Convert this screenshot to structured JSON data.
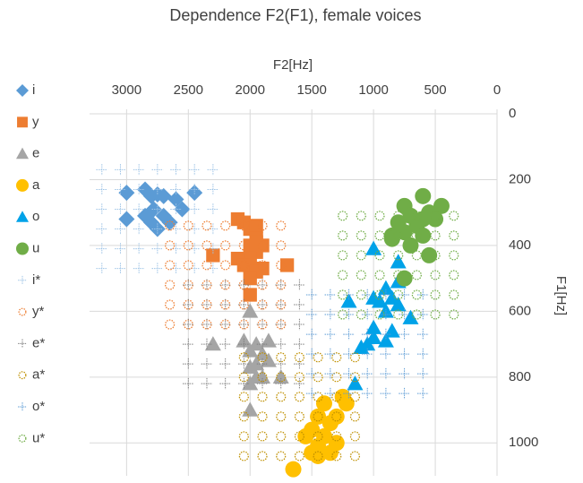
{
  "chart_data": {
    "type": "scatter",
    "title": "Dependence F2(F1), female voices",
    "x_label": "F2[Hz]",
    "y_label": "F1[Hz]",
    "xlim": [
      3300,
      0
    ],
    "ylim": [
      0,
      1100
    ],
    "xticks": [
      3000,
      2500,
      2000,
      1500,
      1000,
      500,
      0
    ],
    "yticks": [
      0,
      200,
      400,
      600,
      800,
      1000
    ],
    "grid": true,
    "series": [
      {
        "name": "i",
        "color": "#5b9bd5",
        "marker": "diamond",
        "x": [
          3000,
          2850,
          2800,
          2750,
          2700,
          2600,
          2450,
          2780,
          2700,
          2550,
          2800,
          2650,
          3000,
          2750,
          2850
        ],
        "y": [
          240,
          230,
          250,
          245,
          250,
          260,
          240,
          290,
          310,
          290,
          330,
          330,
          320,
          350,
          310
        ]
      },
      {
        "name": "y",
        "color": "#ed7d31",
        "marker": "square",
        "x": [
          2100,
          2050,
          2000,
          1950,
          1950,
          2000,
          1900,
          1950,
          2000,
          2100,
          2300,
          2050,
          1700,
          1900,
          1950,
          2000,
          2000,
          1950
        ],
        "y": [
          320,
          330,
          350,
          340,
          380,
          400,
          400,
          420,
          440,
          440,
          430,
          460,
          460,
          470,
          480,
          500,
          550,
          390
        ]
      },
      {
        "name": "e",
        "color": "#a5a5a5",
        "marker": "triangle",
        "x": [
          2000,
          2300,
          2050,
          2000,
          1950,
          1850,
          1900,
          1850,
          1750,
          2000,
          1950,
          1900,
          2000,
          1950,
          2000
        ],
        "y": [
          600,
          700,
          690,
          720,
          700,
          690,
          730,
          750,
          800,
          770,
          800,
          800,
          820,
          760,
          900
        ]
      },
      {
        "name": "a",
        "color": "#ffc000",
        "marker": "circle",
        "x": [
          1400,
          1250,
          1220,
          1300,
          1450,
          1350,
          1500,
          1400,
          1550,
          1300,
          1450,
          1500,
          1350,
          1450,
          1650
        ],
        "y": [
          880,
          860,
          880,
          920,
          920,
          940,
          960,
          980,
          980,
          1000,
          1010,
          1030,
          1030,
          1040,
          1080
        ]
      },
      {
        "name": "o",
        "color": "#00a2e8",
        "marker": "triangle",
        "x": [
          1000,
          800,
          800,
          900,
          850,
          950,
          1000,
          1200,
          900,
          700,
          1000,
          850,
          1000,
          900,
          1100,
          1050,
          1150,
          800
        ],
        "y": [
          410,
          450,
          510,
          530,
          560,
          570,
          560,
          570,
          600,
          620,
          650,
          660,
          680,
          690,
          710,
          700,
          820,
          580
        ]
      },
      {
        "name": "u",
        "color": "#70ad47",
        "marker": "circle",
        "x": [
          600,
          750,
          450,
          550,
          700,
          600,
          500,
          800,
          650,
          750,
          600,
          850,
          700,
          850,
          550,
          750
        ],
        "y": [
          250,
          280,
          280,
          300,
          310,
          320,
          320,
          330,
          340,
          360,
          370,
          370,
          400,
          380,
          430,
          500
        ]
      },
      {
        "name": "i*",
        "color": "#9dc3e6",
        "marker": "plus",
        "x": [
          3200,
          3050,
          2900,
          2750,
          2600,
          2450,
          2300,
          3200,
          3050,
          2900,
          2750,
          2600,
          2450,
          2300,
          3200,
          3050,
          2900,
          2750,
          2600,
          2450,
          2300,
          3200,
          3050,
          2900,
          2750,
          2600,
          2450,
          2300,
          3200,
          3050,
          2900,
          2750,
          2600,
          2450,
          2300,
          3200,
          3050,
          2900,
          2750,
          2600,
          2450,
          2300
        ],
        "y": [
          170,
          170,
          170,
          170,
          170,
          170,
          170,
          230,
          230,
          230,
          230,
          230,
          230,
          230,
          290,
          290,
          290,
          290,
          290,
          290,
          290,
          350,
          350,
          350,
          350,
          350,
          350,
          350,
          410,
          410,
          410,
          410,
          410,
          410,
          410,
          470,
          470,
          470,
          470,
          470,
          470,
          470
        ]
      },
      {
        "name": "y*",
        "color": "#ed7d31",
        "marker": "ring",
        "x": [
          2650,
          2500,
          2350,
          2200,
          2050,
          1900,
          1750,
          2650,
          2500,
          2350,
          2200,
          2050,
          1900,
          1750,
          2650,
          2500,
          2350,
          2200,
          2050,
          1900,
          1750,
          2650,
          2500,
          2350,
          2200,
          2050,
          1900,
          1750,
          2650,
          2500,
          2350,
          2200,
          2050,
          1900,
          1750,
          2650,
          2500,
          2350,
          2200,
          2050,
          1900,
          1750
        ],
        "y": [
          340,
          340,
          340,
          340,
          340,
          340,
          340,
          400,
          400,
          400,
          400,
          400,
          400,
          400,
          460,
          460,
          460,
          460,
          460,
          460,
          460,
          520,
          520,
          520,
          520,
          520,
          520,
          520,
          580,
          580,
          580,
          580,
          580,
          580,
          580,
          640,
          640,
          640,
          640,
          640,
          640,
          640
        ]
      },
      {
        "name": "e*",
        "color": "#7f7f7f",
        "marker": "plus",
        "x": [
          2500,
          2350,
          2200,
          2050,
          1900,
          1750,
          1600,
          2500,
          2350,
          2200,
          2050,
          1900,
          1750,
          1600,
          2500,
          2350,
          2200,
          2050,
          1900,
          1750,
          1600,
          2500,
          2350,
          2200,
          2050,
          1900,
          1750,
          1600,
          2500,
          2350,
          2200,
          2050,
          1900,
          1750,
          1600,
          2500,
          2350,
          2200,
          2050,
          1900,
          1750,
          1600
        ],
        "y": [
          520,
          520,
          520,
          520,
          520,
          520,
          520,
          580,
          580,
          580,
          580,
          580,
          580,
          580,
          640,
          640,
          640,
          640,
          640,
          640,
          640,
          700,
          700,
          700,
          700,
          700,
          700,
          700,
          760,
          760,
          760,
          760,
          760,
          760,
          760,
          820,
          820,
          820,
          820,
          820,
          820,
          820
        ]
      },
      {
        "name": "a*",
        "color": "#bf9000",
        "marker": "ring",
        "x": [
          2050,
          1900,
          1750,
          1600,
          1450,
          1300,
          1150,
          2050,
          1900,
          1750,
          1600,
          1450,
          1300,
          1150,
          2050,
          1900,
          1750,
          1600,
          1450,
          1300,
          1150,
          2050,
          1900,
          1750,
          1600,
          1450,
          1300,
          1150,
          2050,
          1900,
          1750,
          1600,
          1450,
          1300,
          1150,
          2050,
          1900,
          1750,
          1600,
          1450,
          1300,
          1150
        ],
        "y": [
          740,
          740,
          740,
          740,
          740,
          740,
          740,
          800,
          800,
          800,
          800,
          800,
          800,
          800,
          860,
          860,
          860,
          860,
          860,
          860,
          860,
          920,
          920,
          920,
          920,
          920,
          920,
          920,
          980,
          980,
          980,
          980,
          980,
          980,
          980,
          1040,
          1040,
          1040,
          1040,
          1040,
          1040,
          1040
        ]
      },
      {
        "name": "o*",
        "color": "#5b9bd5",
        "marker": "plus",
        "x": [
          1500,
          1350,
          1200,
          1050,
          900,
          750,
          600,
          1500,
          1350,
          1200,
          1050,
          900,
          750,
          600,
          1500,
          1350,
          1200,
          1050,
          900,
          750,
          600,
          1500,
          1350,
          1200,
          1050,
          900,
          750,
          600,
          1500,
          1350,
          1200,
          1050,
          900,
          750,
          600,
          1500,
          1350,
          1200,
          1050,
          900,
          750,
          600
        ],
        "y": [
          550,
          550,
          550,
          550,
          550,
          550,
          550,
          610,
          610,
          610,
          610,
          610,
          610,
          610,
          670,
          670,
          670,
          670,
          670,
          670,
          670,
          730,
          730,
          730,
          730,
          730,
          730,
          730,
          790,
          790,
          790,
          790,
          790,
          790,
          790,
          850,
          850,
          850,
          850,
          850,
          850,
          850
        ]
      },
      {
        "name": "u*",
        "color": "#70ad47",
        "marker": "ring",
        "x": [
          1250,
          1100,
          950,
          800,
          650,
          500,
          350,
          1250,
          1100,
          950,
          800,
          650,
          500,
          350,
          1250,
          1100,
          950,
          800,
          650,
          500,
          350,
          1250,
          1100,
          950,
          800,
          650,
          500,
          350,
          1250,
          1100,
          950,
          800,
          650,
          500,
          350,
          1250,
          1100,
          950,
          800,
          650,
          500,
          350
        ],
        "y": [
          310,
          310,
          310,
          310,
          310,
          310,
          310,
          370,
          370,
          370,
          370,
          370,
          370,
          370,
          430,
          430,
          430,
          430,
          430,
          430,
          430,
          490,
          490,
          490,
          490,
          490,
          490,
          490,
          550,
          550,
          550,
          550,
          550,
          550,
          550,
          610,
          610,
          610,
          610,
          610,
          610,
          610
        ]
      }
    ]
  }
}
